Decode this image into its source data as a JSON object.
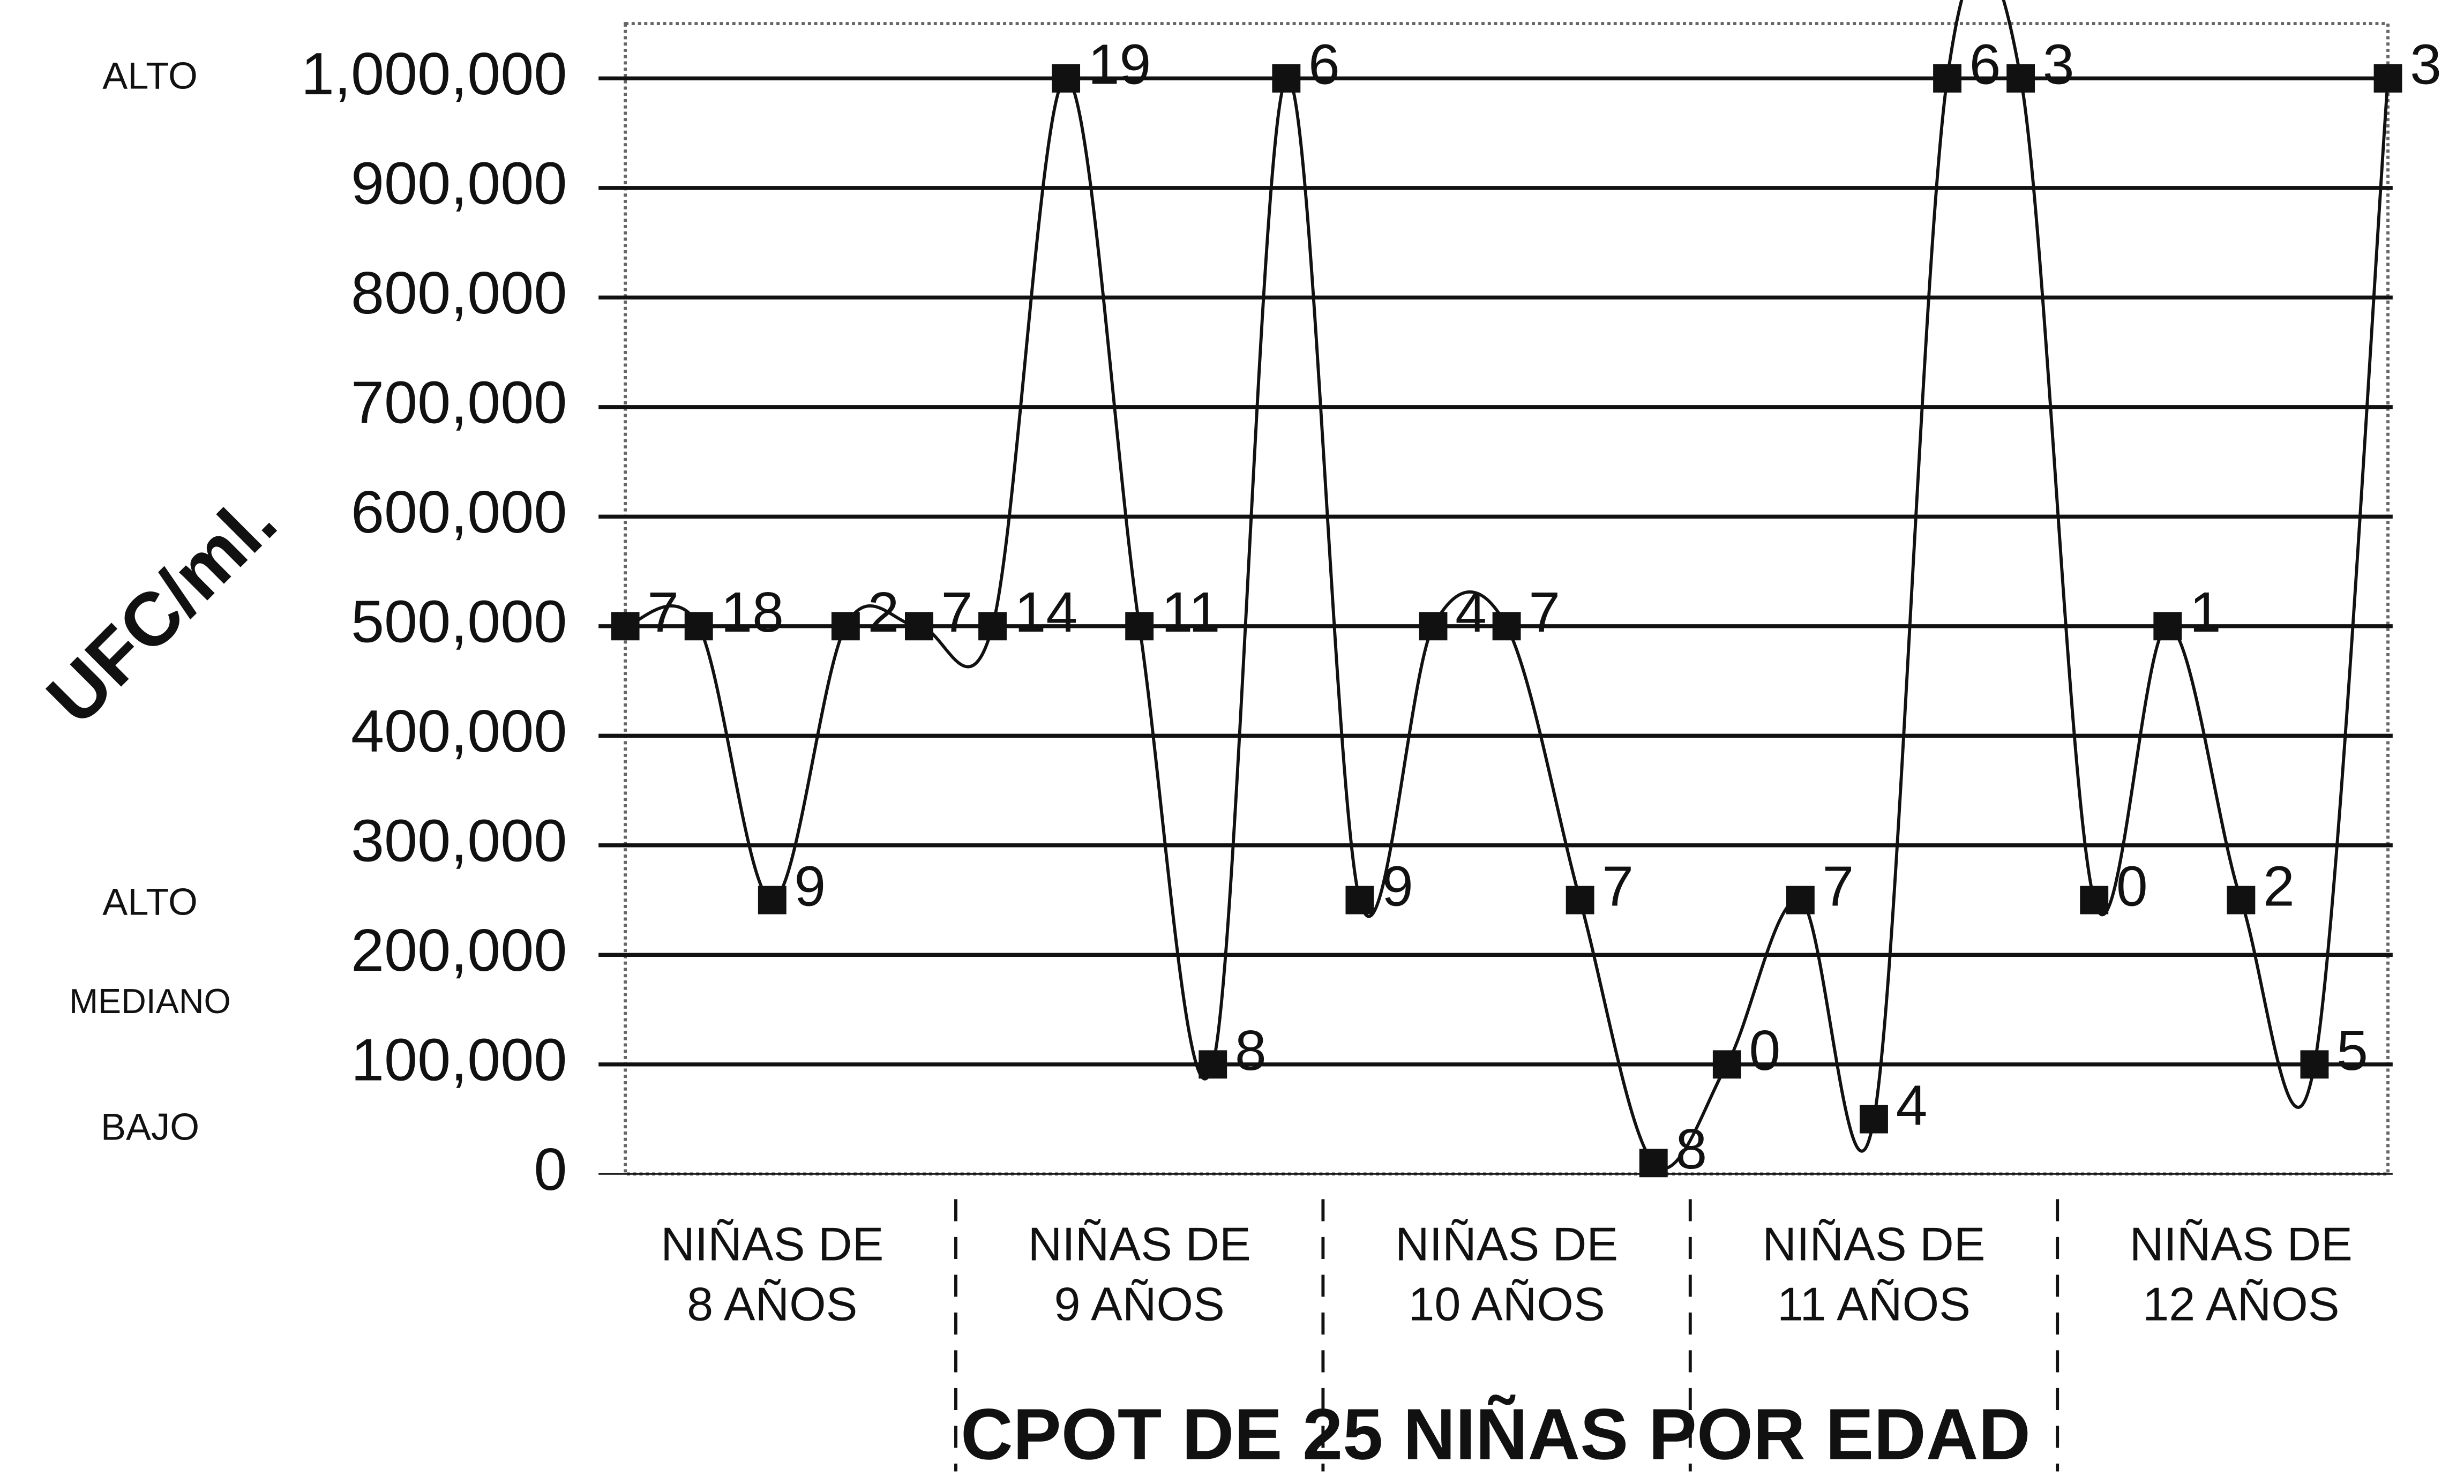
{
  "chart_data": {
    "type": "line",
    "x_title": "CPOT DE 25 NIÑAS POR EDAD",
    "y_title": "UFC/ml.",
    "level_labels": [
      "ALTO",
      "ALTO",
      "MEDIANO",
      "BAJO"
    ],
    "groups": [
      [
        "NIÑAS DE",
        "8 AÑOS"
      ],
      [
        "NIÑAS DE",
        "9 AÑOS"
      ],
      [
        "NIÑAS DE",
        "10 AÑOS"
      ],
      [
        "NIÑAS DE",
        "11 AÑOS"
      ],
      [
        "NIÑAS DE",
        "12 AÑOS"
      ]
    ],
    "values": [
      500000,
      500000,
      250000,
      500000,
      500000,
      500000,
      1000000,
      500000,
      100000,
      1000000,
      250000,
      500000,
      500000,
      250000,
      10000,
      100000,
      250000,
      50000,
      1000000,
      1000000,
      250000,
      500000,
      250000,
      100000,
      1000000
    ],
    "point_labels": [
      "7",
      "18",
      "9",
      "2",
      "7",
      "14",
      "19",
      "11",
      "8",
      "6",
      "9",
      "4",
      "7",
      "7",
      "8",
      "0",
      "7",
      "4",
      "6",
      "3",
      "0",
      "1",
      "2",
      "5",
      "3"
    ],
    "color": "#111111",
    "ylim": [
      0,
      1050000
    ],
    "yticks": [
      0,
      {
        "value": 100000,
        "label": "100,000"
      },
      {
        "value": 200000,
        "label": "200,000"
      },
      {
        "value": 300000,
        "label": "300,000"
      },
      {
        "value": 400000,
        "label": "400,000"
      },
      {
        "value": 500000,
        "label": "500,000"
      },
      {
        "value": 600000,
        "label": "600,000"
      },
      {
        "value": 700000,
        "label": "700,000"
      },
      {
        "value": 800000,
        "label": "800,000"
      },
      {
        "value": 900000,
        "label": "900,000"
      },
      {
        "value": 1000000,
        "label": "1,000,000"
      }
    ],
    "grid": true
  }
}
